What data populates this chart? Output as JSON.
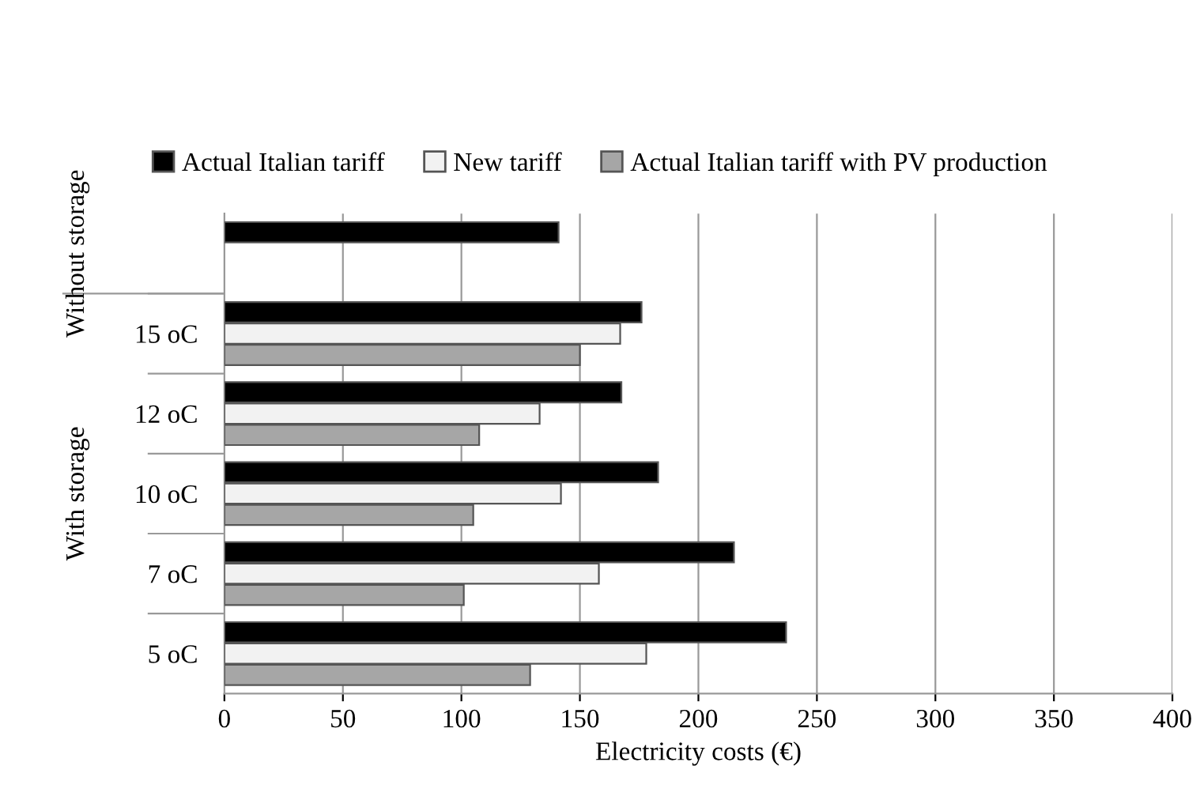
{
  "chart_data": {
    "type": "bar",
    "orientation": "horizontal",
    "xlabel": "Electricity costs (€)",
    "categories": [
      null,
      "15 oC",
      "12 oC",
      "10 oC",
      "7 oC",
      "5 oC"
    ],
    "series": [
      {
        "name": "Actual Italian tariff",
        "color": "#000000",
        "values": [
          141,
          176,
          167.5,
          183,
          215,
          237
        ]
      },
      {
        "name": "New tariff",
        "color": "#f2f2f2",
        "values": [
          null,
          167,
          133,
          142,
          158,
          178
        ]
      },
      {
        "name": "Actual Italian tariff with PV production",
        "color": "#a6a6a6",
        "values": [
          null,
          150,
          107.5,
          105,
          101,
          129
        ]
      }
    ],
    "annotations": [
      "Without storage",
      "With storage"
    ],
    "xlim": [
      0,
      400
    ],
    "xticks": [
      0,
      50,
      100,
      150,
      200,
      250,
      300,
      350,
      400
    ],
    "grid": "x",
    "legend": "top"
  }
}
